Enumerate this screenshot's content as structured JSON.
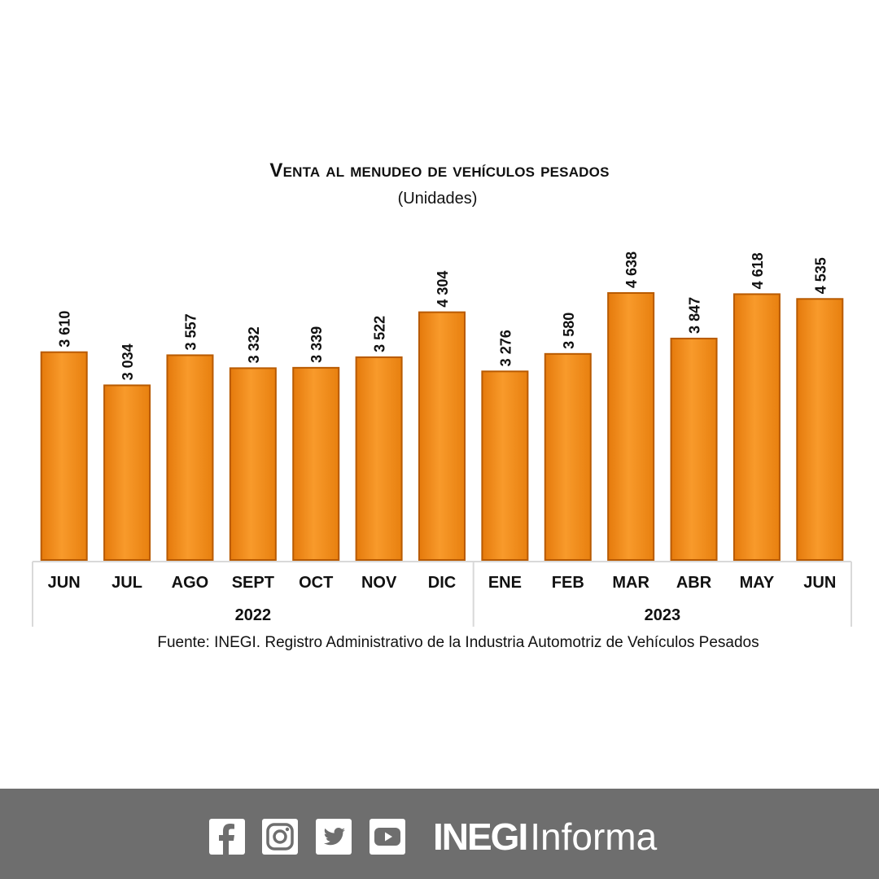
{
  "colors": {
    "bar": "#f7941d",
    "bar_dark": "#b85a00",
    "footer": "#6e6e6e",
    "text": "#111111"
  },
  "chart_data": {
    "type": "bar",
    "title": "Venta al menudeo de vehículos pesados",
    "subtitle": "(Unidades)",
    "categories": [
      "JUN",
      "JUL",
      "AGO",
      "SEPT",
      "OCT",
      "NOV",
      "DIC",
      "ENE",
      "FEB",
      "MAR",
      "ABR",
      "MAY",
      "JUN"
    ],
    "years": [
      {
        "label": "2022",
        "count": 7
      },
      {
        "label": "2023",
        "count": 6
      }
    ],
    "values": [
      3610,
      3034,
      3557,
      3332,
      3339,
      3522,
      4304,
      3276,
      3580,
      4638,
      3847,
      4618,
      4535
    ],
    "data_labels": [
      "3 610",
      "3 034",
      "3 557",
      "3 332",
      "3 339",
      "3 522",
      "4 304",
      "3 276",
      "3 580",
      "4 638",
      "3 847",
      "4 618",
      "4 535"
    ],
    "xlabel": "",
    "ylabel": "",
    "grid": false,
    "legend": "none"
  },
  "source": "Fuente: INEGI. Registro Administrativo de la Industria Automotriz de Vehículos Pesados",
  "footer": {
    "icons": [
      "facebook-icon",
      "instagram-icon",
      "twitter-icon",
      "youtube-icon"
    ],
    "brand_bold": "INEGI",
    "brand_light": "Informa"
  }
}
